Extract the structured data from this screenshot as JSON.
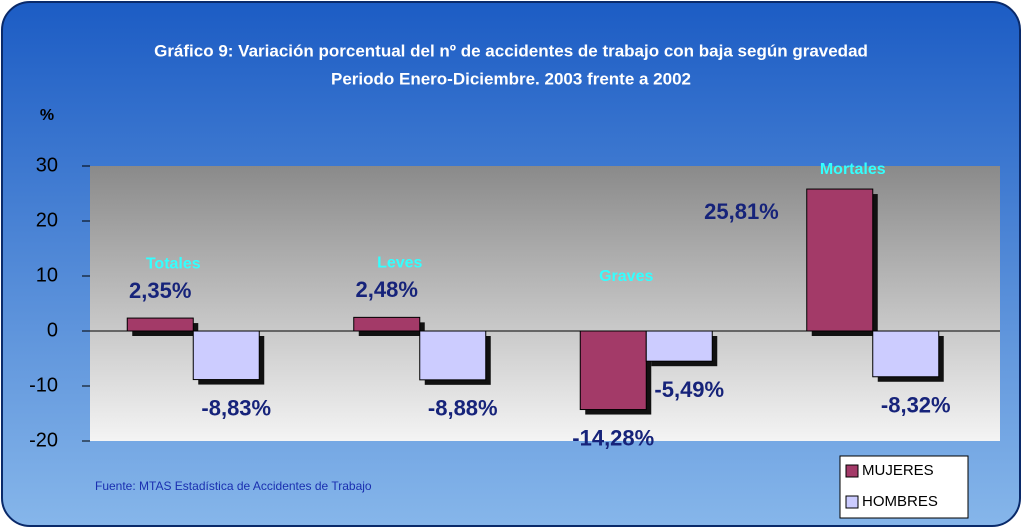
{
  "chart_data": {
    "type": "bar",
    "title": "Gráfico 9: Variación porcentual del nº de accidentes de trabajo con baja según gravedad",
    "subtitle": "Periodo Enero-Diciembre. 2003 frente a 2002",
    "y_label": "%",
    "source": "Fuente: MTAS Estadística de Accidentes de Trabajo",
    "categories": [
      "Totales",
      "Leves",
      "Graves",
      "Mortales"
    ],
    "series": [
      {
        "name": "MUJERES",
        "color": "#a33a68",
        "values": [
          2.35,
          2.48,
          -14.28,
          25.81
        ],
        "value_labels": [
          "2,35%",
          "2,48%",
          "-14,28%",
          "25,81%"
        ]
      },
      {
        "name": "HOMBRES",
        "color": "#ccccff",
        "values": [
          -8.83,
          -8.88,
          -5.49,
          -8.32
        ],
        "value_labels": [
          "-8,83%",
          "-8,88%",
          "-5,49%",
          "-8,32%"
        ]
      }
    ],
    "ylim": [
      -20,
      30
    ],
    "yticks": [
      -20,
      -10,
      0,
      10,
      20,
      30
    ]
  }
}
